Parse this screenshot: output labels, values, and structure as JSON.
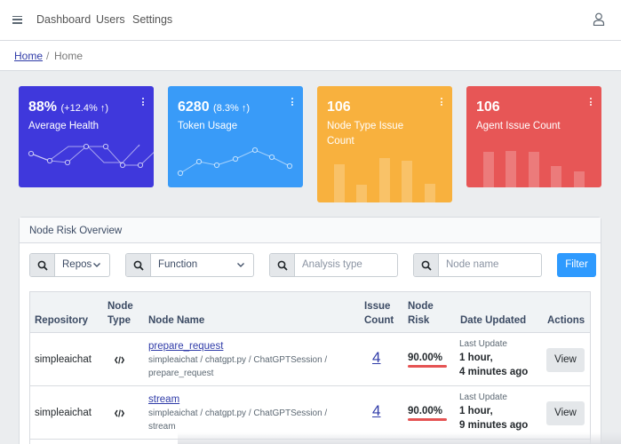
{
  "nav": {
    "items": [
      "Dashboard",
      "Users",
      "Settings"
    ]
  },
  "breadcrumb": {
    "home_link": "Home",
    "separator": "/",
    "current": "Home"
  },
  "cards": [
    {
      "value": "88%",
      "delta": "(+12.4% ↑)",
      "label": "Average Health",
      "color": "#3f38dc"
    },
    {
      "value": "6280",
      "delta": "(8.3% ↑)",
      "label": "Token Usage",
      "color": "#399bf8"
    },
    {
      "value": "106",
      "delta": "",
      "label": "Node Type Issue Count",
      "color": "#f8b13e"
    },
    {
      "value": "106",
      "delta": "",
      "label": "Agent Issue Count",
      "color": "#e75656"
    }
  ],
  "panel": {
    "title": "Node Risk Overview"
  },
  "filters": {
    "repo_value": "Repos",
    "type_value": "Function",
    "analysis_placeholder": "Analysis type",
    "node_placeholder": "Node name",
    "filter_label": "Filter"
  },
  "table": {
    "headers": {
      "repository": "Repository",
      "node_type_1": "Node",
      "node_type_2": "Type",
      "node_name": "Node Name",
      "issue_1": "Issue",
      "issue_2": "Count",
      "risk_1": "Node",
      "risk_2": "Risk",
      "date": "Date Updated",
      "actions": "Actions"
    },
    "rows": [
      {
        "repository": "simpleaichat",
        "type_icon": "code-icon",
        "name": "prepare_request",
        "path1": "simpleaichat / chatgpt.py / ChatGPTSession /",
        "path2": "prepare_request",
        "issue_count": "4",
        "risk": "90.00%",
        "updated_label": "Last Update",
        "updated_1": "1 hour,",
        "updated_2": "4 minutes ago",
        "action": "View"
      },
      {
        "repository": "simpleaichat",
        "type_icon": "code-icon",
        "name": "stream",
        "path1": "simpleaichat / chatgpt.py / ChatGPTSession /",
        "path2": "stream",
        "issue_count": "4",
        "risk": "90.00%",
        "updated_label": "Last Update",
        "updated_1": "1 hour,",
        "updated_2": "9 minutes ago",
        "action": "View"
      }
    ]
  }
}
